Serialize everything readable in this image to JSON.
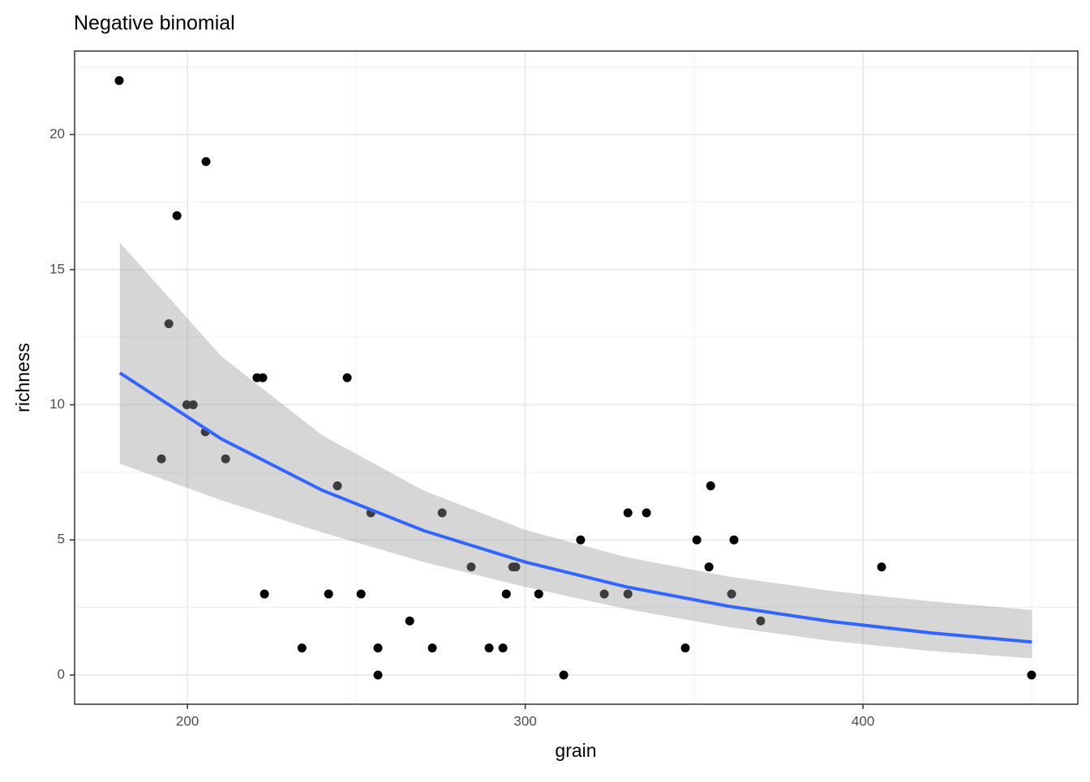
{
  "chart_data": {
    "type": "scatter",
    "title": "Negative binomial",
    "x_label": "grain",
    "y_label": "richness",
    "xlim": [
      166.6,
      463.6
    ],
    "ylim": [
      -1.08,
      23.09
    ],
    "xticks": [
      200,
      300,
      400
    ],
    "yticks": [
      0,
      5,
      10,
      15,
      20
    ],
    "minor_xticks": [
      250,
      350,
      450
    ],
    "minor_yticks": [
      2.5,
      7.5,
      12.5,
      17.5,
      22.5
    ],
    "grid": true,
    "points": {
      "color": "#000000",
      "x": [
        179.8,
        205.5,
        196.9,
        194.5,
        199.8,
        201.7,
        192.3,
        205.3,
        211.3,
        220.6,
        222.3,
        247.3,
        222.8,
        233.9,
        241.8,
        244.4,
        251.4,
        254.3,
        256.4,
        256.4,
        265.8,
        272.5,
        275.4,
        284.0,
        289.3,
        293.4,
        294.4,
        296.3,
        297.2,
        304.0,
        311.4,
        316.4,
        323.4,
        330.4,
        330.4,
        335.9,
        347.4,
        350.8,
        354.4,
        354.9,
        361.1,
        361.8,
        369.7,
        405.5,
        449.9
      ],
      "y": [
        22,
        19,
        17,
        13,
        10,
        10,
        8,
        9,
        8,
        11,
        11,
        11,
        3,
        1,
        3,
        7,
        3,
        6,
        1,
        0,
        2,
        1,
        6,
        4,
        1,
        1,
        3,
        4,
        4,
        3,
        0,
        5,
        3,
        6,
        3,
        6,
        1,
        5,
        4,
        7,
        3,
        5,
        2,
        4,
        0
      ]
    },
    "fit": {
      "color": "#3366ff",
      "band_color": "#999999",
      "x": [
        180,
        210,
        240,
        270,
        300,
        330,
        360,
        390,
        420,
        450
      ],
      "values": [
        11.18,
        8.74,
        6.83,
        5.34,
        4.18,
        3.26,
        2.55,
        1.99,
        1.56,
        1.22
      ],
      "upper": [
        16.0,
        11.8,
        8.86,
        6.82,
        5.37,
        4.36,
        3.65,
        3.12,
        2.73,
        2.41
      ],
      "lower": [
        7.82,
        6.47,
        5.27,
        4.18,
        3.26,
        2.44,
        1.78,
        1.27,
        0.89,
        0.62
      ]
    }
  }
}
